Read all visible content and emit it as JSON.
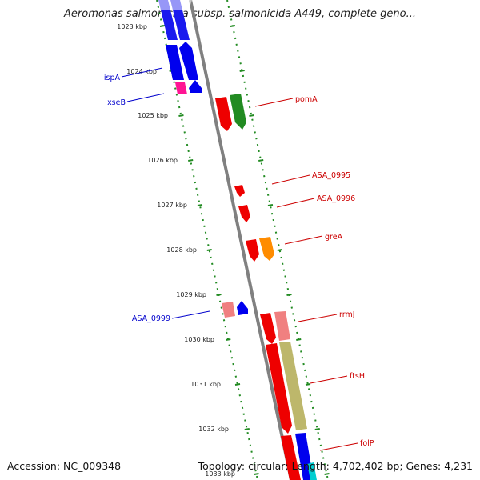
{
  "title": "Aeromonas salmonicida subsp. salmonicida A449, complete geno...",
  "footer": {
    "accession": "Accession: NC_009348",
    "summary": "Topology: circular; Length: 4,702,402 bp; Genes: 4,231"
  },
  "colors": {
    "backbone": "#808080",
    "ticks": "#228b22",
    "label_forward": "#cc0000",
    "label_reverse": "#0000cc"
  },
  "scale": {
    "unit": "kbp",
    "labels": [
      "1023 kbp",
      "1024 kbp",
      "1025 kbp",
      "1026 kbp",
      "1027 kbp",
      "1028 kbp",
      "1029 kbp",
      "1030 kbp",
      "1031 kbp",
      "1032 kbp",
      "1033 kbp"
    ]
  },
  "gene_labels": {
    "pomA": "pomA",
    "asa0995": "ASA_0995",
    "asa0996": "ASA_0996",
    "greA": "greA",
    "rrmJ": "rrmJ",
    "ftsH": "ftsH",
    "folP": "folP",
    "ispA": "ispA",
    "xseB": "xseB",
    "asa0999": "ASA_0999"
  }
}
